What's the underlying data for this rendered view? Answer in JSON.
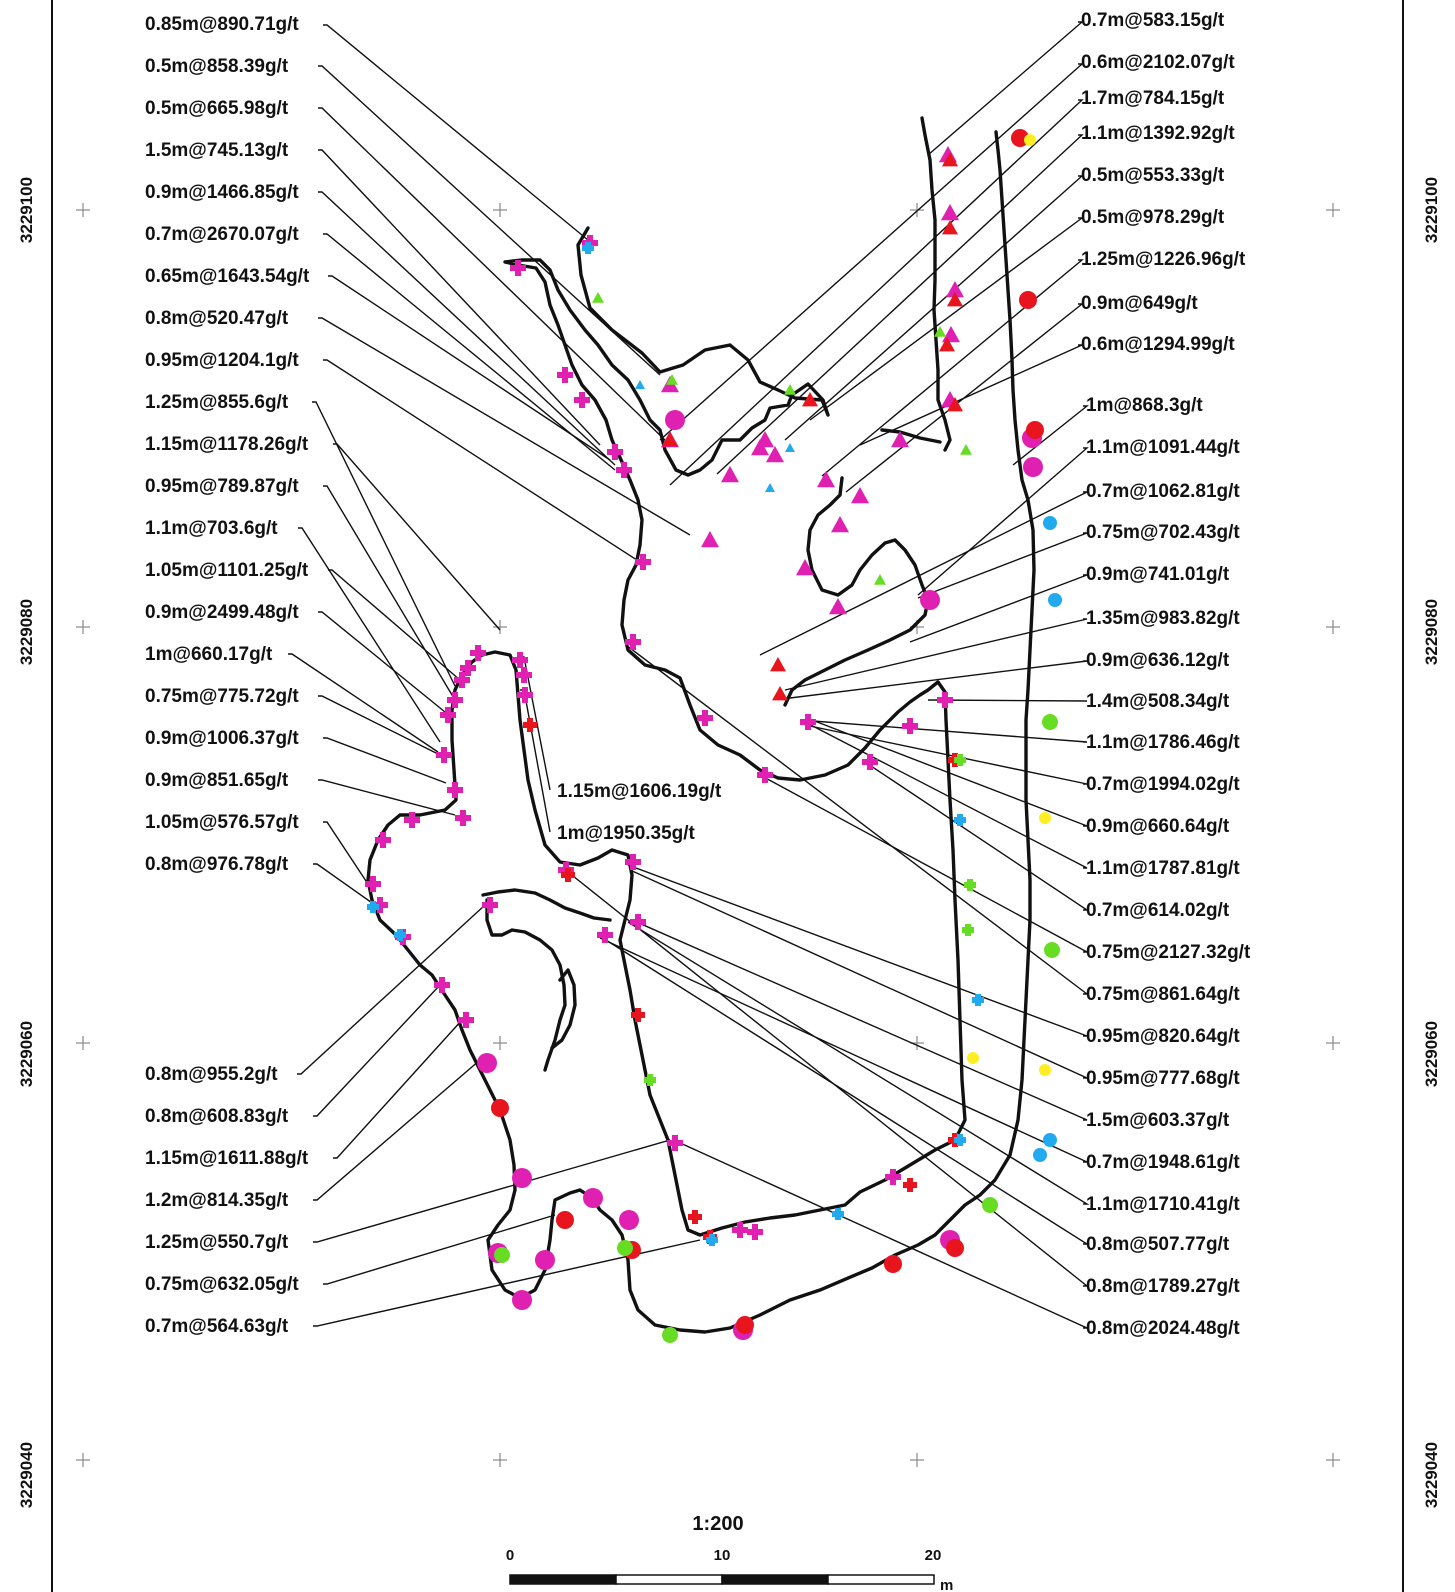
{
  "colors": {
    "magenta": "#e020b0",
    "red": "#e8141e",
    "green": "#66dd22",
    "cyan": "#22aaee",
    "yellow": "#ffee22",
    "line": "#111111"
  },
  "coords": {
    "north_labels": [
      "3229100",
      "3229080",
      "3229060",
      "3229040"
    ]
  },
  "scale": {
    "ratio": "1:200",
    "ticks": [
      "0",
      "10",
      "20"
    ],
    "unit": "m"
  },
  "labels_left": [
    "0.85m@890.71g/t",
    "0.5m@858.39g/t",
    "0.5m@665.98g/t",
    "1.5m@745.13g/t",
    "0.9m@1466.85g/t",
    "0.7m@2670.07g/t",
    "0.65m@1643.54g/t",
    "0.8m@520.47g/t",
    "0.95m@1204.1g/t",
    "1.25m@855.6g/t",
    "1.15m@1178.26g/t",
    "0.95m@789.87g/t",
    "1.1m@703.6g/t",
    "1.05m@1101.25g/t",
    "0.9m@2499.48g/t",
    "1m@660.17g/t",
    "0.75m@775.72g/t",
    "0.9m@1006.37g/t",
    "0.9m@851.65g/t",
    "1.05m@576.57g/t",
    "0.8m@976.78g/t"
  ],
  "labels_left_bottom": [
    "0.8m@955.2g/t",
    "0.8m@608.83g/t",
    "1.15m@1611.88g/t",
    "1.2m@814.35g/t",
    "1.25m@550.7g/t",
    "0.75m@632.05g/t",
    "0.7m@564.63g/t"
  ],
  "labels_center": [
    "1.15m@1606.19g/t",
    "1m@1950.35g/t"
  ],
  "labels_right": [
    "0.7m@583.15g/t",
    "0.6m@2102.07g/t",
    "1.7m@784.15g/t",
    "1.1m@1392.92g/t",
    "0.5m@553.33g/t",
    "0.5m@978.29g/t",
    "1.25m@1226.96g/t",
    "0.9m@649g/t",
    "0.6m@1294.99g/t",
    "1m@868.3g/t",
    "1.1m@1091.44g/t",
    "0.7m@1062.81g/t",
    "0.75m@702.43g/t",
    "0.9m@741.01g/t",
    "1.35m@983.82g/t",
    "0.9m@636.12g/t",
    "1.4m@508.34g/t",
    "1.1m@1786.46g/t",
    "0.7m@1994.02g/t",
    "0.9m@660.64g/t",
    "1.1m@1787.81g/t",
    "0.7m@614.02g/t",
    "0.75m@2127.32g/t",
    "0.75m@861.64g/t",
    "0.95m@820.64g/t",
    "0.95m@777.68g/t",
    "1.5m@603.37g/t",
    "0.7m@1948.61g/t",
    "1.1m@1710.41g/t",
    "0.8m@507.77g/t",
    "0.8m@1789.27g/t",
    "0.8m@2024.48g/t"
  ]
}
